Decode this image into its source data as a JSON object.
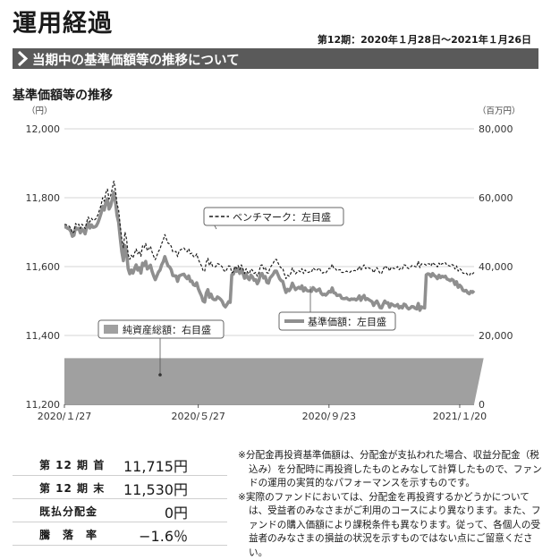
{
  "header": {
    "title": "運用経過",
    "period": "第12期：2020年１月28日～2021年１月26日",
    "section": "当期中の基準価額等の推移について",
    "chart_heading": "基準価額等の推移"
  },
  "chart_data": {
    "type": "line",
    "left_axis_unit": "（円）",
    "right_axis_unit": "（百万円）",
    "left_ticks": [
      "11,200",
      "11,400",
      "11,600",
      "11,800",
      "12,000"
    ],
    "right_ticks": [
      "0",
      "20,000",
      "40,000",
      "60,000",
      "80,000"
    ],
    "ylim_left": [
      11200,
      12000
    ],
    "ylim_right": [
      0,
      80000
    ],
    "x_tick_labels": [
      "2020/１/27",
      "2020/５/27",
      "2020/９/23",
      "2021/１/20"
    ],
    "x_tick_index": [
      0,
      84,
      166,
      248
    ],
    "grid": "horizontal",
    "legend": {
      "benchmark": "ベンチマーク：左目盛",
      "nav": "基準価額：左目盛",
      "net_assets": "純資産総額：右目盛"
    },
    "series": [
      {
        "name": "ベンチマーク：左目盛",
        "axis": "left",
        "color": "#1a1a1a",
        "style": "dashed",
        "values": [
          11722,
          11722,
          11719,
          11717,
          11712,
          11697,
          11701,
          11725,
          11720,
          11723,
          11711,
          11723,
          11718,
          11710,
          11730,
          11744,
          11730,
          11740,
          11734,
          11736,
          11740,
          11750,
          11764,
          11779,
          11800,
          11790,
          11814,
          11825,
          11796,
          11806,
          11826,
          11848,
          11822,
          11783,
          11764,
          11720,
          11680,
          11655,
          11700,
          11680,
          11635,
          11621,
          11633,
          11625,
          11639,
          11651,
          11637,
          11645,
          11630,
          11660,
          11654,
          11667,
          11646,
          11652,
          11659,
          11642,
          11630,
          11620,
          11632,
          11644,
          11651,
          11667,
          11677,
          11693,
          11680,
          11668,
          11666,
          11659,
          11643,
          11643,
          11644,
          11629,
          11646,
          11649,
          11652,
          11654,
          11647,
          11643,
          11652,
          11637,
          11639,
          11629,
          11628,
          11637,
          11621,
          11611,
          11602,
          11588,
          11586,
          11613,
          11624,
          11603,
          11613,
          11601,
          11599,
          11600,
          11609,
          11607,
          11604,
          11599,
          11589,
          11585,
          11593,
          11602,
          11601,
          11582,
          11585,
          11601,
          11595,
          11603,
          11591,
          11605,
          11594,
          11580,
          11594,
          11583,
          11579,
          11593,
          11589,
          11580,
          11583,
          11572,
          11582,
          11603,
          11605,
          11593,
          11598,
          11582,
          11581,
          11597,
          11603,
          11610,
          11620,
          11621,
          11611,
          11601,
          11596,
          11595,
          11578,
          11565,
          11575,
          11572,
          11580,
          11596,
          11587,
          11579,
          11584,
          11588,
          11585,
          11594,
          11580,
          11590,
          11584,
          11583,
          11585,
          11584,
          11596,
          11592,
          11588,
          11592,
          11596,
          11585,
          11581,
          11584,
          11582,
          11588,
          11595,
          11594,
          11607,
          11594,
          11594,
          11588,
          11590,
          11591,
          11583,
          11583,
          11584,
          11587,
          11584,
          11583,
          11587,
          11587,
          11589,
          11587,
          11592,
          11601,
          11589,
          11599,
          11605,
          11594,
          11598,
          11596,
          11594,
          11592,
          11582,
          11591,
          11597,
          11589,
          11580,
          11580,
          11592,
          11602,
          11597,
          11599,
          11587,
          11598,
          11596,
          11594,
          11595,
          11600,
          11591,
          11596,
          11593,
          11605,
          11604,
          11597,
          11594,
          11598,
          11603,
          11603,
          11600,
          11599,
          11616,
          11597,
          11608,
          11607,
          11607,
          11604,
          11608,
          11608,
          11602,
          11612,
          11607,
          11605,
          11599,
          11610,
          11604,
          11609,
          11608,
          11611,
          11604,
          11603,
          11601,
          11606,
          11604,
          11593,
          11602,
          11587,
          11594,
          11590,
          11581,
          11580,
          11582,
          11576,
          11574,
          11582,
          11579,
          11583
        ]
      },
      {
        "name": "基準価額：左目盛",
        "axis": "left",
        "color": "#8f8f8f",
        "style": "solid",
        "values": [
          11715,
          11715,
          11711,
          11709,
          11703,
          11688,
          11691,
          11714,
          11709,
          11711,
          11698,
          11709,
          11704,
          11695,
          11714,
          11727,
          11712,
          11721,
          11714,
          11715,
          11718,
          11727,
          11740,
          11755,
          11775,
          11764,
          11787,
          11797,
          11767,
          11776,
          11795,
          11816,
          11789,
          11749,
          11729,
          11684,
          11643,
          11617,
          11661,
          11640,
          11594,
          11579,
          11590,
          11581,
          11594,
          11605,
          11590,
          11597,
          11581,
          11610,
          11603,
          11615,
          11593,
          11598,
          11604,
          11586,
          11573,
          11562,
          11573,
          11584,
          11590,
          11605,
          11614,
          11629,
          11615,
          11602,
          11599,
          11591,
          11574,
          11573,
          11573,
          11557,
          11573,
          11575,
          11577,
          11578,
          11570,
          11565,
          11573,
          11557,
          11558,
          11547,
          11545,
          11553,
          11536,
          11525,
          11515,
          11500,
          11497,
          11523,
          11533,
          11511,
          11520,
          11507,
          11504,
          11504,
          11512,
          11509,
          11505,
          11499,
          11488,
          11483,
          11490,
          11498,
          11496,
          11576,
          11578,
          11593,
          11586,
          11593,
          11580,
          11593,
          11581,
          11566,
          11579,
          11567,
          11562,
          11575,
          11570,
          11560,
          11562,
          11550,
          11559,
          11579,
          11580,
          11567,
          11571,
          11554,
          11552,
          11567,
          11572,
          11578,
          11587,
          11587,
          11576,
          11565,
          11559,
          11557,
          11539,
          11525,
          11534,
          11530,
          11537,
          11552,
          11542,
          11533,
          11537,
          11540,
          11536,
          11544,
          11529,
          11538,
          11531,
          11529,
          11530,
          11528,
          11539,
          11534,
          11529,
          11532,
          11535,
          11523,
          11518,
          11520,
          11517,
          11522,
          11528,
          11526,
          11538,
          11524,
          11523,
          11516,
          11517,
          11517,
          11508,
          11507,
          11507,
          11509,
          11505,
          11503,
          11506,
          11505,
          11506,
          11503,
          11507,
          11515,
          11502,
          11511,
          11516,
          11504,
          11507,
          11504,
          11501,
          11498,
          11487,
          11495,
          11500,
          11491,
          11481,
          11480,
          11491,
          11500,
          11494,
          11495,
          11482,
          11492,
          11489,
          11486,
          11486,
          11490,
          11480,
          11484,
          11480,
          11491,
          11489,
          11481,
          11477,
          11480,
          11484,
          11483,
          11479,
          11477,
          11493,
          11473,
          11483,
          11481,
          11480,
          11576,
          11579,
          11578,
          11571,
          11580,
          11574,
          11571,
          11565,
          11575,
          11568,
          11572,
          11570,
          11572,
          11564,
          11562,
          11559,
          11563,
          11560,
          11548,
          11556,
          11540,
          11546,
          11541,
          11531,
          11529,
          11531,
          11524,
          11521,
          11528,
          11525,
          11530
        ]
      },
      {
        "name": "純資産総額：右目盛",
        "axis": "right",
        "color": "#a0a0a0",
        "style": "area",
        "values": [
          13400,
          13400,
          13400,
          13400,
          13400,
          13400,
          13400,
          13400,
          13400,
          13400,
          13400,
          13400,
          13400,
          13400,
          13400,
          13400,
          13400,
          13400,
          13400,
          13400,
          13400,
          13400,
          13400,
          13400,
          13400,
          13400,
          13400,
          13400,
          13400,
          13400,
          13400,
          13400,
          13400,
          13400,
          13400,
          13400,
          13400,
          13400,
          13400,
          13400,
          13400,
          13400,
          13400,
          13400,
          13400,
          13400,
          13400,
          13400,
          13400,
          13400,
          13400,
          13400,
          13400,
          13400,
          13400,
          13400,
          13400,
          13400,
          13400,
          13400,
          13400,
          13400,
          13400,
          13400,
          13400,
          13400,
          13400,
          13400,
          13400,
          13400,
          13400,
          13400,
          13400,
          13400,
          13400,
          13400,
          13400,
          13400,
          13400,
          13400,
          13400,
          13400,
          13400,
          13400,
          13400,
          13400,
          13400,
          13400,
          13400,
          13400,
          13400,
          13400,
          13400,
          13400,
          13400,
          13400,
          13400,
          13400,
          13400,
          13400,
          13400,
          13400,
          13400,
          13400,
          13400,
          13400,
          13400,
          13400,
          13400,
          13400,
          13400,
          13400,
          13400,
          13400,
          13400,
          13400,
          13400,
          13400,
          13400,
          13400,
          13400,
          13400,
          13400,
          13400,
          13400,
          13400,
          13400,
          13400,
          13400,
          13400,
          13400,
          13400,
          13400,
          13400,
          13400,
          13400,
          13400,
          13400,
          13400,
          13400,
          13400,
          13400,
          13400,
          13400,
          13400,
          13400,
          13400,
          13400,
          13400,
          13400,
          13400,
          13400,
          13400,
          13400,
          13400,
          13400,
          13400,
          13400,
          13400,
          13400,
          13400,
          13400,
          13400,
          13400,
          13400,
          13400,
          13400,
          13400,
          13400,
          13400,
          13400,
          13400,
          13400,
          13400,
          13400,
          13400,
          13400,
          13400,
          13400,
          13400,
          13400,
          13400,
          13400,
          13400,
          13400,
          13400,
          13400,
          13400,
          13400,
          13400,
          13400,
          13400,
          13400,
          13400,
          13400,
          13400,
          13400,
          13400,
          13400,
          13400,
          13400,
          13400,
          13400,
          13400,
          13400,
          13400,
          13400,
          13400,
          13400,
          13400,
          13400,
          13400,
          13400,
          13400,
          13400,
          13400,
          13400,
          13400,
          13400,
          13400,
          13400,
          13400,
          13400,
          13400,
          13400,
          13400,
          13400,
          13400,
          13400,
          13400,
          13400,
          13400,
          13400,
          13400,
          13400,
          13400,
          13400,
          13400,
          13400,
          13400,
          13400,
          13400,
          13400,
          13400,
          13400,
          13400,
          13400,
          13400,
          13400,
          13400,
          13400,
          13400,
          13400,
          13400,
          13400,
          13400,
          13400,
          13400,
          13400,
          13400,
          13400,
          13400,
          13400,
          13400
        ]
      }
    ]
  },
  "summary": [
    {
      "label": "第 12 期 首",
      "value": "11,715円"
    },
    {
      "label": "第 12 期 末",
      "value": "11,530円"
    },
    {
      "label": "既払分配金",
      "value": "0円"
    },
    {
      "label": "騰　落　率",
      "value": "−1.6％"
    }
  ],
  "notes": [
    "※分配金再投資基準価額は、分配金が支払われた場合、収益分配金（税込み）を分配時に再投資したものとみなして計算したもので、ファンドの運用の実質的なパフォーマンスを示すものです。",
    "※実際のファンドにおいては、分配金を再投資するかどうかについては、受益者のみなさまがご利用のコースにより異なります。また、ファンドの購入価額により課税条件も異なります。従って、各個人の受益者のみなさまの損益の状況を示すものではない点にご留意ください。"
  ]
}
